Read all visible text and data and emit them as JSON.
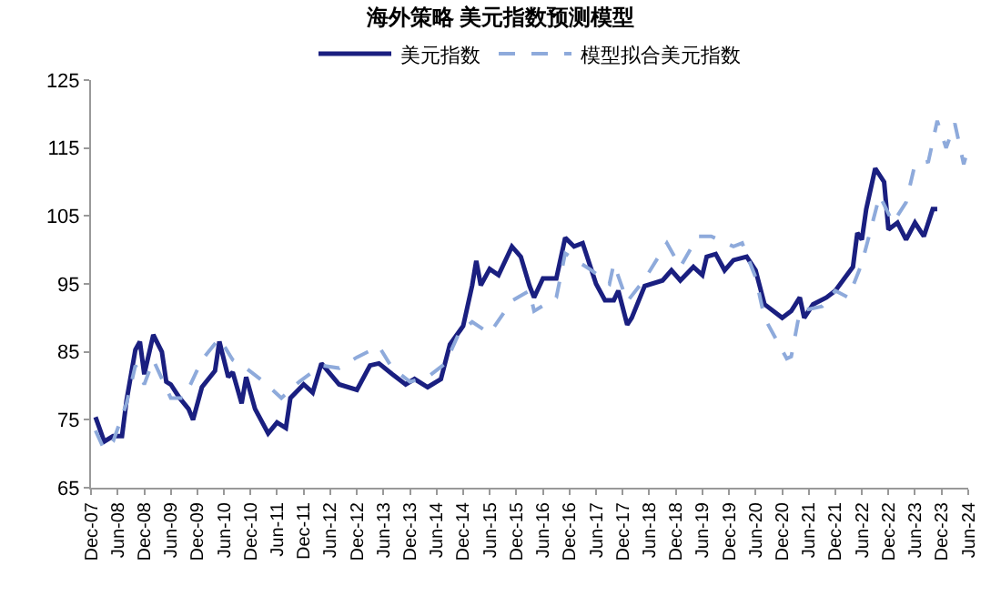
{
  "chart_data": {
    "type": "line",
    "title": "海外策略 美元指数预测模型",
    "legend": "top",
    "grid": false,
    "xlim": [
      "2007-12",
      "2024-06"
    ],
    "xticks": [
      {
        "value": "2007-12",
        "label": "Dec-07"
      },
      {
        "value": "2008-06",
        "label": "Jun-08"
      },
      {
        "value": "2008-12",
        "label": "Dec-08"
      },
      {
        "value": "2009-06",
        "label": "Jun-09"
      },
      {
        "value": "2009-12",
        "label": "Dec-09"
      },
      {
        "value": "2010-06",
        "label": "Jun-10"
      },
      {
        "value": "2010-12",
        "label": "Dec-10"
      },
      {
        "value": "2011-06",
        "label": "Jun-11"
      },
      {
        "value": "2011-12",
        "label": "Dec-11"
      },
      {
        "value": "2012-06",
        "label": "Jun-12"
      },
      {
        "value": "2012-12",
        "label": "Dec-12"
      },
      {
        "value": "2013-06",
        "label": "Jun-13"
      },
      {
        "value": "2013-12",
        "label": "Dec-13"
      },
      {
        "value": "2014-06",
        "label": "Jun-14"
      },
      {
        "value": "2014-12",
        "label": "Dec-14"
      },
      {
        "value": "2015-06",
        "label": "Jun-15"
      },
      {
        "value": "2015-12",
        "label": "Dec-15"
      },
      {
        "value": "2016-06",
        "label": "Jun-16"
      },
      {
        "value": "2016-12",
        "label": "Dec-16"
      },
      {
        "value": "2017-06",
        "label": "Jun-17"
      },
      {
        "value": "2017-12",
        "label": "Dec-17"
      },
      {
        "value": "2018-06",
        "label": "Jun-18"
      },
      {
        "value": "2018-12",
        "label": "Dec-18"
      },
      {
        "value": "2019-06",
        "label": "Jun-19"
      },
      {
        "value": "2019-12",
        "label": "Dec-19"
      },
      {
        "value": "2020-06",
        "label": "Jun-20"
      },
      {
        "value": "2020-12",
        "label": "Dec-20"
      },
      {
        "value": "2021-06",
        "label": "Jun-21"
      },
      {
        "value": "2021-12",
        "label": "Dec-21"
      },
      {
        "value": "2022-06",
        "label": "Jun-22"
      },
      {
        "value": "2022-12",
        "label": "Dec-22"
      },
      {
        "value": "2023-06",
        "label": "Jun-23"
      },
      {
        "value": "2023-12",
        "label": "Dec-23"
      },
      {
        "value": "2024-06",
        "label": "Jun-24"
      }
    ],
    "ylim": [
      65,
      125
    ],
    "yticks": [
      65,
      75,
      85,
      95,
      105,
      115,
      125
    ],
    "series": [
      {
        "name": "美元指数",
        "color": "#1a1f80",
        "line_style": "solid",
        "x": [
          "2008-01",
          "2008-03",
          "2008-05",
          "2008-07",
          "2008-08",
          "2008-10",
          "2008-11",
          "2008-12",
          "2009-02",
          "2009-04",
          "2009-05",
          "2009-06",
          "2009-08",
          "2009-10",
          "2009-11",
          "2010-01",
          "2010-04",
          "2010-05",
          "2010-07",
          "2010-08",
          "2010-10",
          "2010-11",
          "2011-01",
          "2011-04",
          "2011-06",
          "2011-08",
          "2011-09",
          "2011-12",
          "2012-02",
          "2012-04",
          "2012-08",
          "2012-12",
          "2013-03",
          "2013-05",
          "2013-08",
          "2013-11",
          "2014-01",
          "2014-04",
          "2014-07",
          "2014-09",
          "2014-12",
          "2015-02",
          "2015-03",
          "2015-04",
          "2015-06",
          "2015-08",
          "2015-11",
          "2016-01",
          "2016-03",
          "2016-04",
          "2016-06",
          "2016-09",
          "2016-11",
          "2017-01",
          "2017-03",
          "2017-06",
          "2017-08",
          "2017-10",
          "2017-11",
          "2018-01",
          "2018-02",
          "2018-05",
          "2018-09",
          "2018-11",
          "2019-01",
          "2019-04",
          "2019-06",
          "2019-07",
          "2019-09",
          "2019-11",
          "2020-01",
          "2020-04",
          "2020-06",
          "2020-08",
          "2020-12",
          "2021-02",
          "2021-04",
          "2021-05",
          "2021-07",
          "2021-10",
          "2021-12",
          "2022-02",
          "2022-04",
          "2022-05",
          "2022-06",
          "2022-07",
          "2022-09",
          "2022-11",
          "2022-12",
          "2023-02",
          "2023-04",
          "2023-06",
          "2023-08",
          "2023-10",
          "2023-11"
        ],
        "values": [
          75.4,
          71.8,
          72.6,
          72.6,
          77.8,
          85.3,
          86.5,
          81.7,
          87.5,
          85,
          80.6,
          80.2,
          78.2,
          76.6,
          75,
          79.8,
          82.2,
          86.5,
          81.3,
          82,
          77.4,
          81.3,
          76.6,
          73,
          74.6,
          73.8,
          78.2,
          80.2,
          79,
          83.3,
          80.2,
          79.4,
          83,
          83.3,
          81.7,
          80.2,
          81,
          79.8,
          81,
          86.1,
          88.8,
          94.8,
          98.4,
          94.8,
          97.2,
          96.3,
          100.5,
          99,
          94.7,
          93,
          95.8,
          95.8,
          101.8,
          100.5,
          101,
          95,
          92.6,
          92.6,
          94,
          89,
          90,
          94.7,
          95.5,
          97,
          95.5,
          97.5,
          96.3,
          99,
          99.4,
          97,
          98.5,
          99,
          97,
          92,
          90,
          91,
          93,
          90,
          92,
          93,
          94,
          95.8,
          97.5,
          102.5,
          101.5,
          106,
          112,
          110,
          103,
          104,
          101.5,
          104,
          102,
          106,
          106
        ]
      },
      {
        "name": "模型拟合美元指数",
        "color": "#8eaadb",
        "line_style": "dashed",
        "x": [
          "2008-01",
          "2008-03",
          "2008-05",
          "2008-08",
          "2008-10",
          "2008-12",
          "2009-02",
          "2009-06",
          "2009-09",
          "2010-01",
          "2010-05",
          "2010-08",
          "2010-11",
          "2011-03",
          "2011-07",
          "2011-11",
          "2012-04",
          "2012-08",
          "2012-12",
          "2013-05",
          "2013-08",
          "2013-12",
          "2014-04",
          "2014-08",
          "2014-11",
          "2015-02",
          "2015-06",
          "2015-11",
          "2016-03",
          "2016-04",
          "2016-09",
          "2016-11",
          "2017-05",
          "2017-09",
          "2017-10",
          "2018-01",
          "2018-05",
          "2018-10",
          "2019-01",
          "2019-05",
          "2019-08",
          "2020-01",
          "2020-03",
          "2020-06",
          "2020-08",
          "2020-10",
          "2021-01",
          "2021-02",
          "2021-04",
          "2021-09",
          "2021-12",
          "2022-03",
          "2022-06",
          "2022-10",
          "2023-01",
          "2023-04",
          "2023-06",
          "2023-09",
          "2023-11",
          "2024-01",
          "2024-03",
          "2024-05",
          "2024-06"
        ],
        "values": [
          73.4,
          70.6,
          71.8,
          77.4,
          83,
          80.2,
          83.8,
          78.2,
          78.2,
          83.8,
          87,
          83.8,
          82.6,
          80.6,
          78.2,
          80.6,
          83,
          82.6,
          84.2,
          85.8,
          82.6,
          80.6,
          81.3,
          83.3,
          87.7,
          89.4,
          87.7,
          92.5,
          94,
          91,
          93,
          99.5,
          97,
          95,
          98,
          92.4,
          95.7,
          101,
          97.5,
          102,
          102,
          100.5,
          101,
          96,
          90,
          87.6,
          84,
          84.3,
          91,
          91.7,
          94,
          93,
          98,
          108,
          104,
          107,
          112.6,
          113,
          119,
          115,
          118.6,
          112.6,
          115
        ]
      }
    ]
  }
}
